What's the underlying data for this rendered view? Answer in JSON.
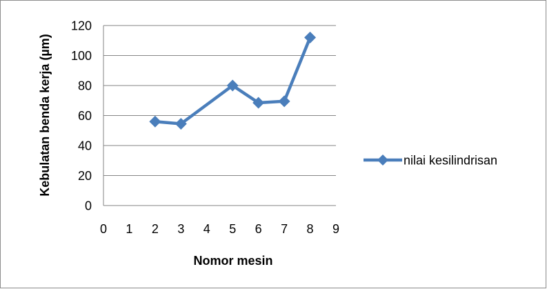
{
  "chart_data": {
    "type": "line",
    "title": "",
    "xlabel": "Nomor mesin",
    "ylabel": "Kebulatan benda kerja  (µm)",
    "xlim": [
      0,
      9
    ],
    "ylim": [
      0,
      120
    ],
    "xticks": [
      "0",
      "1",
      "2",
      "3",
      "4",
      "5",
      "6",
      "7",
      "8",
      "9"
    ],
    "yticks": [
      "0",
      "20",
      "40",
      "60",
      "80",
      "100",
      "120"
    ],
    "grid": "horizontal",
    "legend_position": "right",
    "series": [
      {
        "name": "nilai kesilindrisan",
        "color": "#4A7EBB",
        "marker": "diamond",
        "x": [
          2,
          3,
          5,
          6,
          7,
          8
        ],
        "y": [
          56,
          54.5,
          80,
          68.5,
          69.5,
          112
        ]
      }
    ]
  }
}
